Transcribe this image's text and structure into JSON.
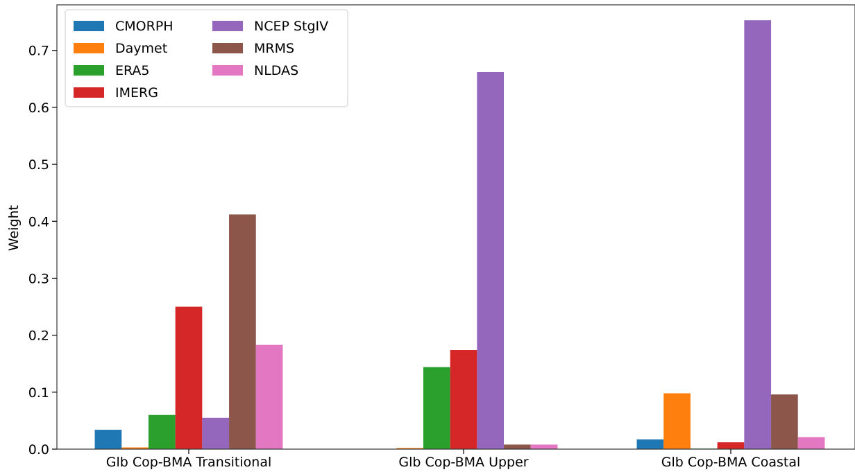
{
  "chart_data": {
    "type": "bar",
    "title": "",
    "xlabel": "",
    "ylabel": "Weight",
    "ylim": [
      0,
      0.78
    ],
    "yticks": [
      "0.0",
      "0.1",
      "0.2",
      "0.3",
      "0.4",
      "0.5",
      "0.6",
      "0.7"
    ],
    "categories": [
      "Glb Cop-BMA Transitional",
      "Glb Cop-BMA Upper",
      "Glb Cop-BMA Coastal"
    ],
    "series": [
      {
        "name": "CMORPH",
        "color": "#1f77b4",
        "values": [
          0.034,
          0.0,
          0.017
        ]
      },
      {
        "name": "Daymet",
        "color": "#ff7f0e",
        "values": [
          0.003,
          0.002,
          0.098
        ]
      },
      {
        "name": "ERA5",
        "color": "#2ca02c",
        "values": [
          0.06,
          0.144,
          0.001
        ]
      },
      {
        "name": "IMERG",
        "color": "#d62728",
        "values": [
          0.25,
          0.174,
          0.012
        ]
      },
      {
        "name": "NCEP StgIV",
        "color": "#9467bd",
        "values": [
          0.055,
          0.662,
          0.753
        ]
      },
      {
        "name": "MRMS",
        "color": "#8c564b",
        "values": [
          0.412,
          0.008,
          0.096
        ]
      },
      {
        "name": "NLDAS",
        "color": "#e377c2",
        "values": [
          0.183,
          0.008,
          0.021
        ]
      }
    ],
    "legend_position": "top-left",
    "legend_columns": 2,
    "grid": false
  }
}
